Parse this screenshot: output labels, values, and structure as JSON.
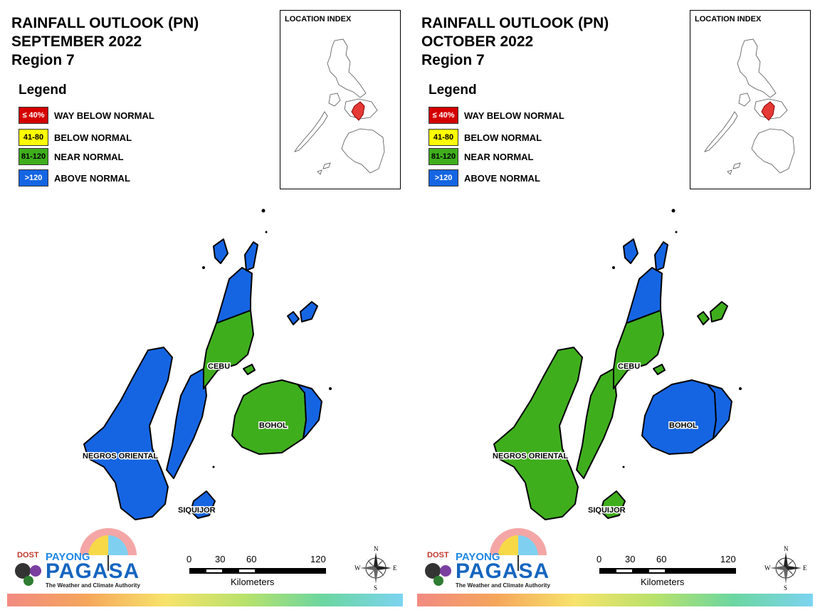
{
  "panels": [
    {
      "title_line1": "RAINFALL OUTLOOK (PN)",
      "title_line2": "SEPTEMBER 2022",
      "title_line3": "Region 7",
      "legend_title": "Legend",
      "legend": [
        {
          "range": "≤ 40%",
          "label": "WAY BELOW NORMAL",
          "color": "#d40000",
          "text_color": "#ffffff"
        },
        {
          "range": "41-80",
          "label": "BELOW NORMAL",
          "color": "#ffff00",
          "text_color": "#000000"
        },
        {
          "range": "81-120",
          "label": "NEAR NORMAL",
          "color": "#3fae1d",
          "text_color": "#000000"
        },
        {
          "range": ">120",
          "label": "ABOVE NORMAL",
          "color": "#1565e3",
          "text_color": "#ffffff"
        }
      ],
      "location_index_label": "LOCATION INDEX",
      "places": {
        "cebu": "CEBU",
        "bohol": "BOHOL",
        "negros": "NEGROS ORIENTAL",
        "siquijor": "SIQUIJOR"
      },
      "categories": {
        "cebu_north": "ABOVE NORMAL",
        "cebu_central": "NEAR NORMAL",
        "cebu_south": "ABOVE NORMAL",
        "bohol_main": "NEAR NORMAL",
        "bohol_east": "ABOVE NORMAL",
        "negros": "ABOVE NORMAL",
        "siquijor": "ABOVE NORMAL",
        "camotes": "ABOVE NORMAL",
        "bantayan": "ABOVE NORMAL"
      }
    },
    {
      "title_line1": "RAINFALL OUTLOOK (PN)",
      "title_line2": "OCTOBER 2022",
      "title_line3": "Region 7",
      "legend_title": "Legend",
      "legend": [
        {
          "range": "≤ 40%",
          "label": "WAY BELOW NORMAL",
          "color": "#d40000",
          "text_color": "#ffffff"
        },
        {
          "range": "41-80",
          "label": "BELOW NORMAL",
          "color": "#ffff00",
          "text_color": "#000000"
        },
        {
          "range": "81-120",
          "label": "NEAR NORMAL",
          "color": "#3fae1d",
          "text_color": "#000000"
        },
        {
          "range": ">120",
          "label": "ABOVE NORMAL",
          "color": "#1565e3",
          "text_color": "#ffffff"
        }
      ],
      "location_index_label": "LOCATION INDEX",
      "places": {
        "cebu": "CEBU",
        "bohol": "BOHOL",
        "negros": "NEGROS ORIENTAL",
        "siquijor": "SIQUIJOR"
      },
      "categories": {
        "cebu_north": "ABOVE NORMAL",
        "cebu_central": "NEAR NORMAL",
        "cebu_south": "NEAR NORMAL",
        "bohol_main": "ABOVE NORMAL",
        "bohol_east": "ABOVE NORMAL",
        "negros": "NEAR NORMAL",
        "siquijor": "NEAR NORMAL",
        "camotes": "NEAR NORMAL",
        "bantayan": "ABOVE NORMAL"
      }
    }
  ],
  "logo": {
    "dost": "DOST",
    "payong": "PAYONG",
    "pagasa": "PAGASA",
    "tagline": "The Weather and Climate Authority"
  },
  "scale": {
    "ticks": [
      "0",
      "30",
      "60",
      "120"
    ],
    "units": "Kilometers"
  },
  "compass": {
    "n": "N",
    "s": "S",
    "e": "E",
    "w": "W"
  }
}
